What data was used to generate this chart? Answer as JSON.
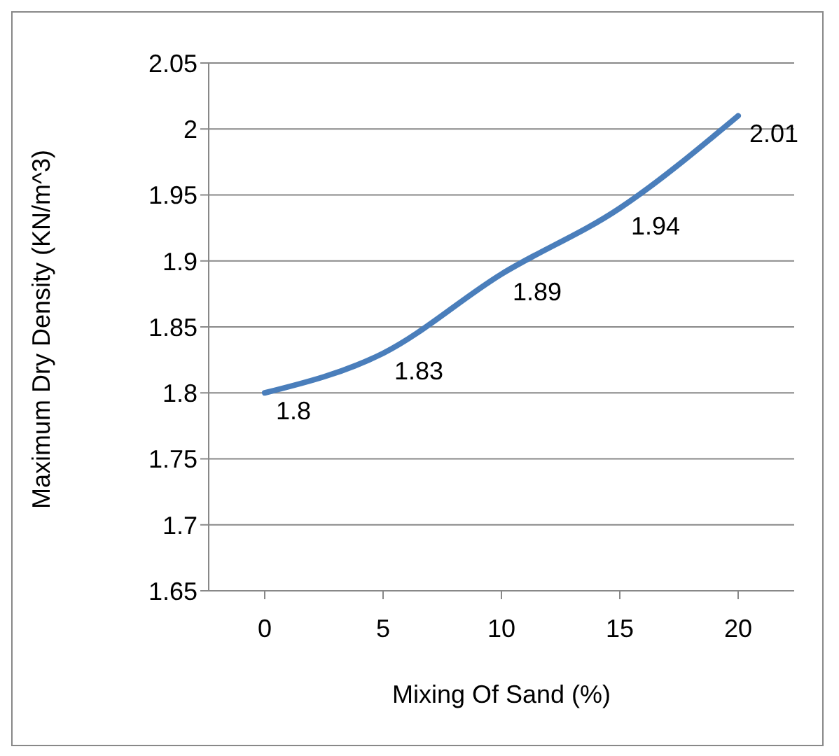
{
  "chart_data": {
    "type": "line",
    "xlabel": "Mixing Of Sand (%)",
    "ylabel": "Maximum Dry Density (KN/m^3)",
    "categories": [
      "0",
      "5",
      "10",
      "15",
      "20"
    ],
    "series": [
      {
        "color": "#4a7ebb",
        "values": [
          1.8,
          1.83,
          1.89,
          1.94,
          2.01
        ]
      }
    ],
    "ylim": [
      1.65,
      2.05
    ],
    "yticks": [
      1.65,
      1.7,
      1.75,
      1.8,
      1.85,
      1.9,
      1.95,
      2,
      2.05
    ],
    "grid": "y",
    "data_labels": true,
    "legend": false,
    "marker": "none",
    "line_style": "solid"
  }
}
